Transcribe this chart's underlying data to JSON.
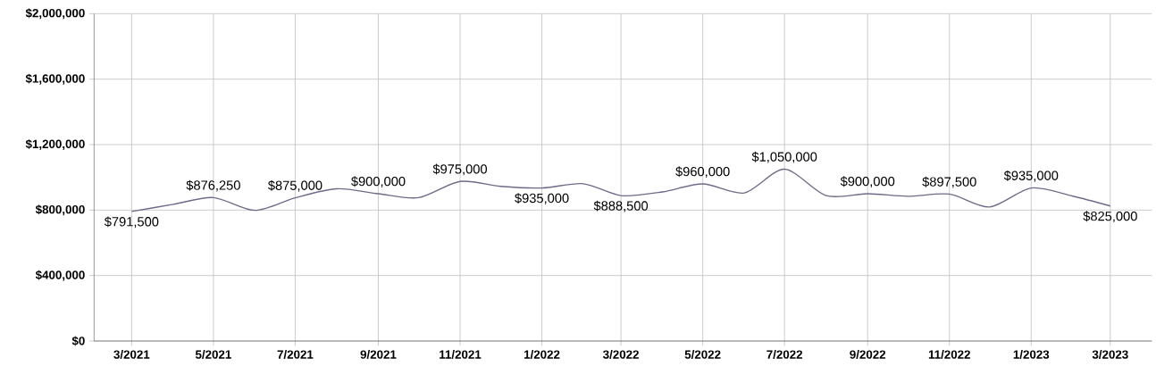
{
  "chart_data": {
    "type": "line",
    "x": [
      "2021-03",
      "2021-04",
      "2021-05",
      "2021-06",
      "2021-07",
      "2021-08",
      "2021-09",
      "2021-10",
      "2021-11",
      "2021-12",
      "2022-01",
      "2022-02",
      "2022-03",
      "2022-04",
      "2022-05",
      "2022-06",
      "2022-07",
      "2022-08",
      "2022-09",
      "2022-10",
      "2022-11",
      "2022-12",
      "2023-01",
      "2023-02",
      "2023-03"
    ],
    "values": [
      791500,
      835000,
      876250,
      798000,
      875000,
      930000,
      900000,
      876000,
      975000,
      945000,
      935000,
      961000,
      888500,
      911000,
      960000,
      905000,
      1050000,
      888000,
      900000,
      884000,
      897500,
      819000,
      935000,
      885000,
      825000
    ],
    "value_labels": [
      "$791,500",
      null,
      "$876,250",
      null,
      "$875,000",
      null,
      "$900,000",
      null,
      "$975,000",
      null,
      "$935,000",
      null,
      "$888,500",
      null,
      "$960,000",
      null,
      "$1,050,000",
      null,
      "$900,000",
      null,
      "$897,500",
      null,
      "$935,000",
      null,
      "$825,000"
    ],
    "color": "#6e6a8a",
    "xlim": [
      "2021-02",
      "2023-04"
    ],
    "xticks": [
      {
        "value": "2021-03",
        "label": "3/2021"
      },
      {
        "value": "2021-05",
        "label": "5/2021"
      },
      {
        "value": "2021-07",
        "label": "7/2021"
      },
      {
        "value": "2021-09",
        "label": "9/2021"
      },
      {
        "value": "2021-11",
        "label": "11/2021"
      },
      {
        "value": "2022-01",
        "label": "1/2022"
      },
      {
        "value": "2022-03",
        "label": "3/2022"
      },
      {
        "value": "2022-05",
        "label": "5/2022"
      },
      {
        "value": "2022-07",
        "label": "7/2022"
      },
      {
        "value": "2022-09",
        "label": "9/2022"
      },
      {
        "value": "2022-11",
        "label": "11/2022"
      },
      {
        "value": "2023-01",
        "label": "1/2023"
      },
      {
        "value": "2023-03",
        "label": "3/2023"
      }
    ],
    "ylim": [
      0,
      2000000
    ],
    "yticks": [
      {
        "value": 0,
        "label": "$0"
      },
      {
        "value": 400000,
        "label": "$400,000"
      },
      {
        "value": 800000,
        "label": "$800,000"
      },
      {
        "value": 1200000,
        "label": "$1,200,000"
      },
      {
        "value": 1600000,
        "label": "$1,600,000"
      },
      {
        "value": 2000000,
        "label": "$2,000,000"
      }
    ],
    "grid": true,
    "marker": "none",
    "line_style": "solid"
  }
}
